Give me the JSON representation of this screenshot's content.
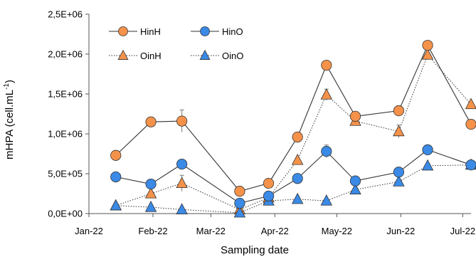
{
  "chart_data": {
    "type": "line",
    "xlabel": "Sampling date",
    "ylabel": "mHPA (cell.mL",
    "ylabel_sup": "-1",
    "ylabel_end": ")",
    "x_tick_labels": [
      "Jan-22",
      "Feb-22",
      "Mar-22",
      "Apr-22",
      "May-22",
      "Jun-22",
      "Jul-22"
    ],
    "x_tick_dates": [
      "2022-01-01",
      "2022-02-01",
      "2022-03-01",
      "2022-04-01",
      "2022-05-01",
      "2022-06-01",
      "2022-07-01"
    ],
    "xlim": [
      "2022-01-01",
      "2022-07-05"
    ],
    "y_tick_labels": [
      "0,0E+00",
      "5,0E+05",
      "1,0E+06",
      "1,5E+06",
      "2,0E+06",
      "2,5E+06"
    ],
    "y_tick_values": [
      0,
      500000,
      1000000,
      1500000,
      2000000,
      2500000
    ],
    "ylim": [
      0,
      2500000
    ],
    "grid": false,
    "legend_placement": "top-left",
    "series": [
      {
        "name": "HinH",
        "marker": "circle",
        "line": "solid",
        "color": "#f08a3a",
        "x": [
          "2022-01-14",
          "2022-01-31",
          "2022-02-15",
          "2022-03-15",
          "2022-03-29",
          "2022-04-12",
          "2022-04-26",
          "2022-05-10",
          "2022-05-31",
          "2022-06-14",
          "2022-07-05"
        ],
        "y": [
          730000,
          1150000,
          1160000,
          280000,
          380000,
          960000,
          1860000,
          1220000,
          1290000,
          2110000,
          1120000
        ],
        "err": [
          30000,
          20000,
          140000,
          20000,
          20000,
          30000,
          40000,
          20000,
          20000,
          40000,
          20000
        ]
      },
      {
        "name": "HinO",
        "marker": "circle",
        "line": "solid",
        "color": "#2f7fd8",
        "x": [
          "2022-01-14",
          "2022-01-31",
          "2022-02-15",
          "2022-03-15",
          "2022-03-29",
          "2022-04-12",
          "2022-04-26",
          "2022-05-10",
          "2022-05-31",
          "2022-06-14",
          "2022-07-05"
        ],
        "y": [
          460000,
          370000,
          620000,
          130000,
          220000,
          440000,
          780000,
          410000,
          520000,
          800000,
          610000
        ],
        "err": [
          20000,
          20000,
          30000,
          20000,
          20000,
          30000,
          80000,
          20000,
          20000,
          20000,
          20000
        ]
      },
      {
        "name": "OinH",
        "marker": "triangle",
        "line": "dotted",
        "color": "#f08a3a",
        "x": [
          "2022-01-14",
          "2022-01-31",
          "2022-02-15",
          "2022-03-15",
          "2022-03-29",
          "2022-04-12",
          "2022-04-26",
          "2022-05-10",
          "2022-05-31",
          "2022-06-14",
          "2022-07-05"
        ],
        "y": [
          100000,
          250000,
          380000,
          50000,
          200000,
          670000,
          1490000,
          1160000,
          1030000,
          1990000,
          1370000
        ],
        "err": [
          10000,
          30000,
          100000,
          10000,
          20000,
          30000,
          70000,
          50000,
          80000,
          60000,
          30000
        ]
      },
      {
        "name": "OinO",
        "marker": "triangle",
        "line": "dotted",
        "color": "#2f7fd8",
        "x": [
          "2022-01-14",
          "2022-01-31",
          "2022-02-15",
          "2022-03-15",
          "2022-03-29",
          "2022-04-12",
          "2022-04-26",
          "2022-05-10",
          "2022-05-31",
          "2022-06-14",
          "2022-07-05"
        ],
        "y": [
          100000,
          80000,
          50000,
          10000,
          160000,
          180000,
          160000,
          300000,
          400000,
          600000,
          610000
        ],
        "err": [
          10000,
          10000,
          10000,
          5000,
          10000,
          10000,
          10000,
          20000,
          20000,
          20000,
          20000
        ]
      }
    ]
  }
}
